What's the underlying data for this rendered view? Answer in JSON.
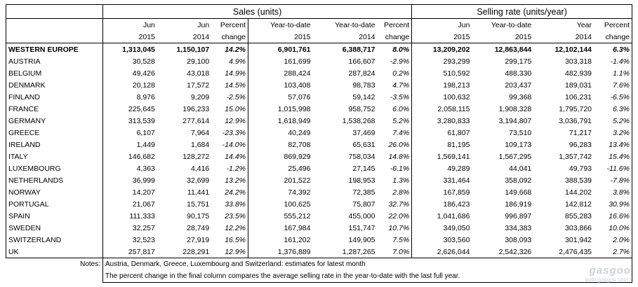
{
  "header": {
    "sales_group": "Sales (units)",
    "rate_group": "Selling rate (units/year)",
    "columns_top": [
      "Jun",
      "Jun",
      "Percent",
      "Year-to-date",
      "Year-to-date",
      "Percent",
      "Jun",
      "Year-to-date",
      "Year",
      "Percent"
    ],
    "columns_bottom": [
      "2015",
      "2014",
      "change",
      "2015",
      "2014",
      "change",
      "2015",
      "2015",
      "2014",
      "change"
    ]
  },
  "rows": [
    {
      "name": "WESTERN EUROPE",
      "v": [
        "1,313,045",
        "1,150,107",
        "14.2%",
        "6,901,761",
        "6,388,717",
        "8.0%",
        "13,209,202",
        "12,863,844",
        "12,102,144",
        "6.3%"
      ]
    },
    {
      "name": "AUSTRIA",
      "v": [
        "30,528",
        "29,100",
        "4.9%",
        "161,699",
        "166,607",
        "-2.9%",
        "293,299",
        "299,175",
        "303,318",
        "-1.4%"
      ]
    },
    {
      "name": "BELGIUM",
      "v": [
        "49,426",
        "43,018",
        "14.9%",
        "288,424",
        "287,824",
        "0.2%",
        "510,592",
        "488,330",
        "482,939",
        "1.1%"
      ]
    },
    {
      "name": "DENMARK",
      "v": [
        "20,128",
        "17,572",
        "14.5%",
        "103,408",
        "98,783",
        "4.7%",
        "198,213",
        "203,437",
        "189,031",
        "7.6%"
      ]
    },
    {
      "name": "FINLAND",
      "v": [
        "8,976",
        "9,209",
        "-2.5%",
        "57,076",
        "59,142",
        "-3.5%",
        "100,632",
        "99,368",
        "106,231",
        "-6.5%"
      ]
    },
    {
      "name": "FRANCE",
      "v": [
        "225,645",
        "196,233",
        "15.0%",
        "1,015,998",
        "958,752",
        "6.0%",
        "2,058,115",
        "1,908,328",
        "1,795,720",
        "6.3%"
      ]
    },
    {
      "name": "GERMANY",
      "v": [
        "313,539",
        "277,614",
        "12.9%",
        "1,618,949",
        "1,538,268",
        "5.2%",
        "3,280,833",
        "3,194,807",
        "3,036,791",
        "5.2%"
      ]
    },
    {
      "name": "GREECE",
      "v": [
        "6,107",
        "7,964",
        "-23.3%",
        "40,249",
        "37,469",
        "7.4%",
        "61,807",
        "73,510",
        "71,217",
        "3.2%"
      ]
    },
    {
      "name": "IRELAND",
      "v": [
        "1,449",
        "1,684",
        "-14.0%",
        "82,708",
        "65,631",
        "26.0%",
        "81,195",
        "109,173",
        "96,283",
        "13.4%"
      ]
    },
    {
      "name": "ITALY",
      "v": [
        "146,682",
        "128,272",
        "14.4%",
        "869,929",
        "758,034",
        "14.8%",
        "1,569,141",
        "1,567,295",
        "1,357,742",
        "15.4%"
      ]
    },
    {
      "name": "LUXEMBOURG",
      "v": [
        "4,363",
        "4,416",
        "-1.2%",
        "25,496",
        "27,145",
        "-6.1%",
        "49,289",
        "44,041",
        "49,793",
        "-11.6%"
      ]
    },
    {
      "name": "NETHERLANDS",
      "v": [
        "36,999",
        "32,699",
        "13.2%",
        "201,522",
        "198,953",
        "1.3%",
        "331,464",
        "358,092",
        "388,539",
        "-7.8%"
      ]
    },
    {
      "name": "NORWAY",
      "v": [
        "14,207",
        "11,441",
        "24.2%",
        "74,392",
        "72,385",
        "2.8%",
        "167,859",
        "149,668",
        "144,202",
        "3.8%"
      ]
    },
    {
      "name": "PORTUGAL",
      "v": [
        "21,067",
        "15,751",
        "33.8%",
        "100,625",
        "75,807",
        "32.7%",
        "186,423",
        "186,919",
        "142,812",
        "30.9%"
      ]
    },
    {
      "name": "SPAIN",
      "v": [
        "111,333",
        "90,175",
        "23.5%",
        "555,212",
        "455,000",
        "22.0%",
        "1,041,686",
        "996,897",
        "855,283",
        "16.6%"
      ]
    },
    {
      "name": "SWEDEN",
      "v": [
        "32,257",
        "28,749",
        "12.2%",
        "167,984",
        "151,747",
        "10.7%",
        "349,050",
        "334,383",
        "303,866",
        "10.0%"
      ]
    },
    {
      "name": "SWITZERLAND",
      "v": [
        "32,523",
        "27,919",
        "16.5%",
        "161,202",
        "149,905",
        "7.5%",
        "303,560",
        "308,093",
        "301,942",
        "2.0%"
      ]
    },
    {
      "name": "UK",
      "v": [
        "257,817",
        "228,291",
        "12.9%",
        "1,376,889",
        "1,287,265",
        "7.0%",
        "2,626,044",
        "2,542,326",
        "2,476,435",
        "2.7%"
      ]
    }
  ],
  "notes": {
    "label": "Notes:",
    "line1": "Austria, Denmark, Greece, Luxembourg and Switzerland: estimates for latest month",
    "line2": "The percent change in the final column compares the average selling rate in the year-to-date with the last full year."
  },
  "watermark": {
    "brand": "gasgoo",
    "site": "auto.gasgoo.com"
  }
}
